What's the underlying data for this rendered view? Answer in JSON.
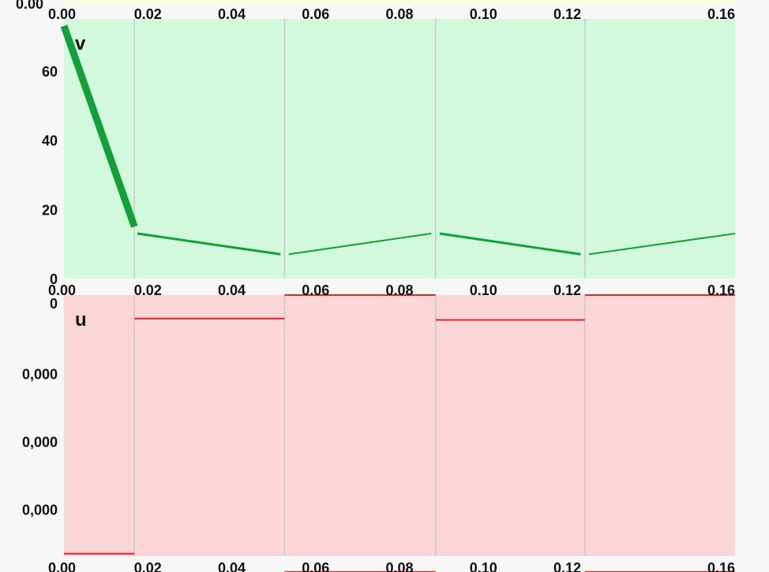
{
  "colors": {
    "page_bg": "#f7f7f7",
    "v_panel_bg": "#d3f9dc",
    "v_line": "#13a03a",
    "u_panel_bg": "#fbd6d8",
    "u_line": "#e0262b",
    "divider": "#c8c8c8",
    "top_strip": "#fbfbe6"
  },
  "chart_data": [
    {
      "type": "line",
      "title": "v",
      "xlim": [
        0,
        0.16
      ],
      "ylim": [
        0,
        75
      ],
      "x_ticks": [
        "0.00",
        "0.02",
        "0.04",
        "0.06",
        "0.08",
        "0.10",
        "0.12",
        "0.16"
      ],
      "x_tick_values": [
        0,
        0.02,
        0.04,
        0.06,
        0.08,
        0.1,
        0.12,
        0.16
      ],
      "y_ticks": [
        "0",
        "20",
        "40",
        "60"
      ],
      "y_tick_values": [
        0,
        20,
        40,
        60
      ],
      "segment_boundaries": [
        0.0168,
        0.0526,
        0.0886,
        0.1242
      ],
      "segments": [
        {
          "x": [
            0.0,
            0.0168
          ],
          "y": [
            73,
            15
          ],
          "thick": true
        },
        {
          "x": [
            0.0175,
            0.0516
          ],
          "y": [
            13,
            7
          ],
          "thick": false
        },
        {
          "x": [
            0.0536,
            0.0876
          ],
          "y": [
            7,
            13
          ],
          "thick": false
        },
        {
          "x": [
            0.0896,
            0.1232
          ],
          "y": [
            13,
            7
          ],
          "thick": false
        },
        {
          "x": [
            0.1252,
            0.16
          ],
          "y": [
            7,
            13
          ],
          "thick": false
        }
      ]
    },
    {
      "type": "line",
      "title": "u",
      "xlim": [
        0,
        0.16
      ],
      "x_ticks": [
        "0.00",
        "0.02",
        "0.04",
        "0.06",
        "0.08",
        "0.10",
        "0.12",
        "0.16"
      ],
      "x_tick_values": [
        0,
        0.02,
        0.04,
        0.06,
        0.08,
        0.1,
        0.12,
        0.16
      ],
      "y_ticks": [
        "0",
        "0,000",
        "0,000",
        "0,000"
      ],
      "y_tick_fractions": [
        0.03,
        0.3,
        0.56,
        0.82
      ],
      "segment_boundaries": [
        0.0168,
        0.0526,
        0.0886,
        0.1242
      ],
      "levels": [
        {
          "x": [
            0.0,
            0.0168
          ],
          "level": 0.99
        },
        {
          "x": [
            0.0168,
            0.0526
          ],
          "level": 0.09
        },
        {
          "x": [
            0.0526,
            0.0886
          ],
          "level": 0.0
        },
        {
          "x": [
            0.0526,
            0.0886
          ],
          "level": 1.06
        },
        {
          "x": [
            0.0886,
            0.1242
          ],
          "level": 0.095
        },
        {
          "x": [
            0.1242,
            0.16
          ],
          "level": 0.0
        },
        {
          "x": [
            0.1242,
            0.16
          ],
          "level": 1.06
        }
      ]
    }
  ]
}
